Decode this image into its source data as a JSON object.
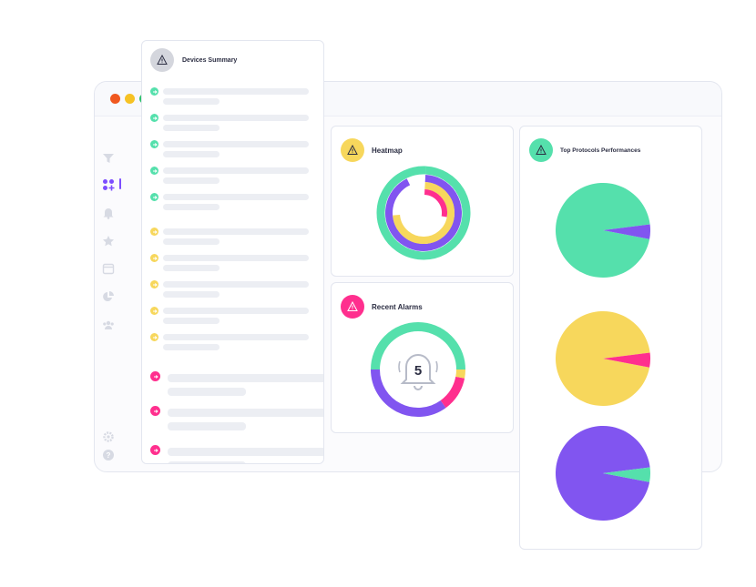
{
  "window": {
    "controls": [
      {
        "name": "close",
        "color": "#f0581f"
      },
      {
        "name": "minimize",
        "color": "#f6c224"
      },
      {
        "name": "maximize",
        "color": "#2ec26b"
      }
    ]
  },
  "sidebar": {
    "items": [
      {
        "icon": "filter-icon",
        "active": false
      },
      {
        "icon": "dashboard-icon",
        "active": true
      },
      {
        "icon": "bell-icon",
        "active": false
      },
      {
        "icon": "star-icon",
        "active": false
      },
      {
        "icon": "calendar-icon",
        "active": false
      },
      {
        "icon": "pie-chart-icon",
        "active": false
      },
      {
        "icon": "users-icon",
        "active": false
      },
      {
        "icon": "settings-icon",
        "active": false
      },
      {
        "icon": "help-icon",
        "active": false
      }
    ]
  },
  "devices_summary": {
    "title": "Devices Summary",
    "icon": "warning-icon",
    "status_colors": {
      "ok": "#55e0ac",
      "warning": "#f7d75c",
      "critical": "#ff2f8e"
    },
    "rows": [
      "ok",
      "ok",
      "ok",
      "ok",
      "ok",
      "warning",
      "warning",
      "warning",
      "warning",
      "warning",
      "critical",
      "critical",
      "critical"
    ]
  },
  "heatmap": {
    "title": "Heatmap",
    "icon": "warning-icon",
    "accent": "#f7d75c"
  },
  "recent_alarms": {
    "title": "Recent Alarms",
    "icon": "warning-icon",
    "accent": "#ff2f8e",
    "count": "5"
  },
  "top_protocols": {
    "title": "Top Protocols Performances",
    "icon": "warning-icon",
    "accent": "#55e0ac"
  },
  "chart_data": [
    {
      "type": "pie",
      "name": "heatmap-rings",
      "rings": [
        {
          "color": "#55e0ac",
          "value": 1.0
        },
        {
          "color": "#8155f0",
          "value": 0.92
        },
        {
          "color": "#f7d75c",
          "value": 0.73
        },
        {
          "color": "#ff2f8e",
          "value": 0.27
        }
      ]
    },
    {
      "type": "pie",
      "name": "recent-alarms-donut",
      "slices": [
        {
          "color": "#55e0ac",
          "value": 0.5
        },
        {
          "color": "#f7d75c",
          "value": 0.03
        },
        {
          "color": "#ff2f8e",
          "value": 0.12
        },
        {
          "color": "#8155f0",
          "value": 0.35
        }
      ]
    },
    {
      "type": "pie",
      "name": "protocol-1",
      "slices": [
        {
          "color": "#55e0ac",
          "value": 0.95
        },
        {
          "color": "#8155f0",
          "value": 0.05
        }
      ]
    },
    {
      "type": "pie",
      "name": "protocol-2",
      "slices": [
        {
          "color": "#f7d75c",
          "value": 0.95
        },
        {
          "color": "#ff2f8e",
          "value": 0.05
        }
      ]
    },
    {
      "type": "pie",
      "name": "protocol-3",
      "slices": [
        {
          "color": "#8155f0",
          "value": 0.95
        },
        {
          "color": "#55e0ac",
          "value": 0.05
        }
      ]
    }
  ]
}
